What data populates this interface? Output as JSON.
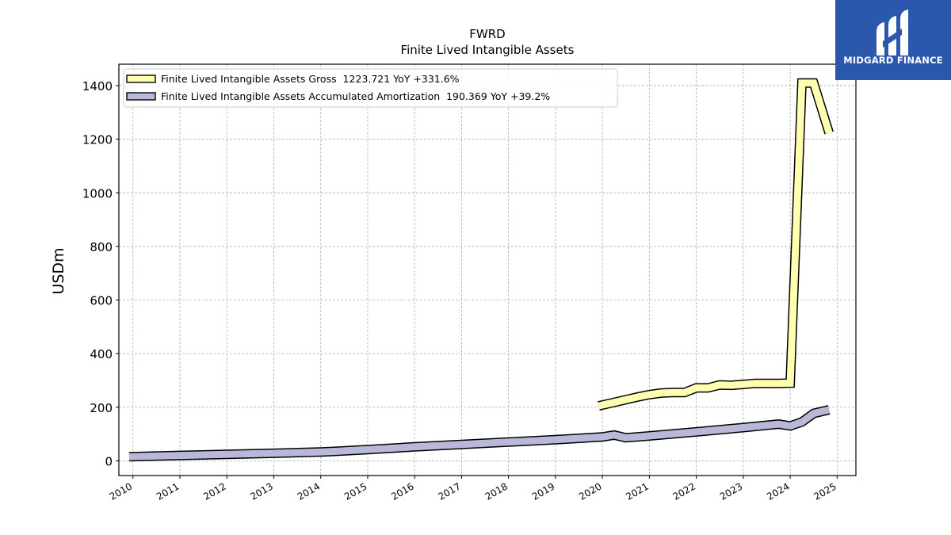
{
  "chart_data": {
    "type": "line",
    "title": "FWRD",
    "subtitle": "Finite Lived Intangible Assets",
    "ylabel": "USDm",
    "xlabel": "",
    "xlim": [
      2009.7,
      2025.4
    ],
    "ylim": [
      -55,
      1480
    ],
    "yticks": [
      0,
      200,
      400,
      600,
      800,
      1000,
      1200,
      1400
    ],
    "xticks": [
      "2010",
      "2011",
      "2012",
      "2013",
      "2014",
      "2015",
      "2016",
      "2017",
      "2018",
      "2019",
      "2020",
      "2021",
      "2022",
      "2023",
      "2024",
      "2025"
    ],
    "grid": true,
    "legend_position": "upper-left",
    "series": [
      {
        "name": "Finite Lived Intangible Assets Gross",
        "legend_label": "Finite Lived Intangible Assets Gross  1223.721 YoY +331.6%",
        "color": "#ffffb0",
        "x": [
          2019.92,
          2020.25,
          2020.5,
          2020.75,
          2021.0,
          2021.25,
          2021.5,
          2021.75,
          2022.0,
          2022.25,
          2022.5,
          2022.75,
          2023.0,
          2023.25,
          2023.5,
          2023.75,
          2024.0,
          2024.25,
          2024.5,
          2024.83
        ],
        "y": [
          205,
          218,
          228,
          238,
          247,
          253,
          255,
          255,
          272,
          272,
          283,
          282,
          285,
          289,
          289,
          289,
          290,
          1410,
          1410,
          1223.721
        ]
      },
      {
        "name": "Finite Lived Intangible Assets Accumulated Amortization",
        "legend_label": "Finite Lived Intangible Assets Accumulated Amortization  190.369 YoY +39.2%",
        "color": "#b8b8d8",
        "x": [
          2009.92,
          2011.0,
          2012.0,
          2013.0,
          2014.0,
          2014.25,
          2015.0,
          2016.0,
          2017.0,
          2018.0,
          2019.0,
          2020.0,
          2020.25,
          2020.5,
          2021.0,
          2022.0,
          2023.0,
          2023.75,
          2024.0,
          2024.25,
          2024.5,
          2024.83
        ],
        "y": [
          15,
          20,
          24,
          28,
          33,
          35,
          42,
          52,
          61,
          70,
          79,
          89,
          96,
          86,
          93,
          108,
          124,
          137,
          130,
          145,
          177,
          190.369
        ]
      }
    ]
  },
  "brand": {
    "name": "MIDGARD FINANCE",
    "logo_icon": "midgard-m-logo-icon",
    "background": "#2b57ad"
  }
}
